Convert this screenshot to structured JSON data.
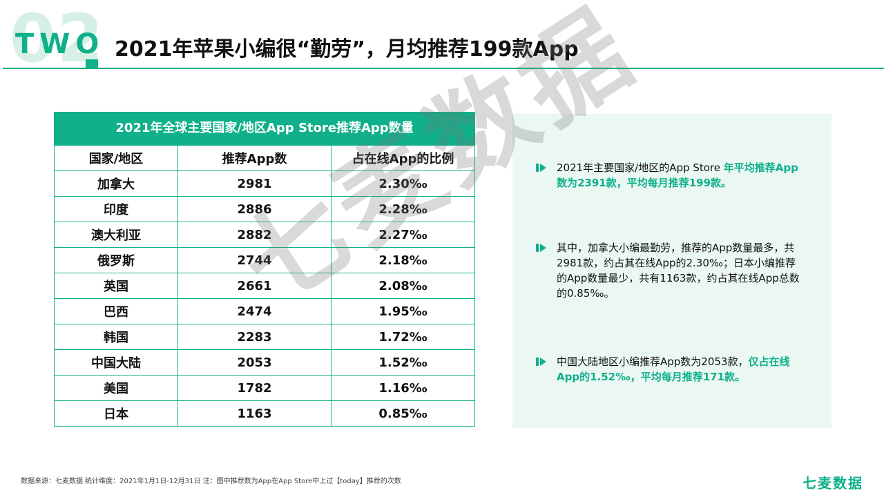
{
  "header": {
    "section_number": "02",
    "section_word": "TWO",
    "title": "2021年苹果小编很“勤劳”，月均推荐199款App"
  },
  "table": {
    "caption": "2021年全球主要国家/地区App Store推荐App数量",
    "columns": [
      "国家/地区",
      "推荐App数",
      "占在线App的比例"
    ],
    "rows": [
      [
        "加拿大",
        "2981",
        "2.30‰"
      ],
      [
        "印度",
        "2886",
        "2.28‰"
      ],
      [
        "澳大利亚",
        "2882",
        "2.27‰"
      ],
      [
        "俄罗斯",
        "2744",
        "2.18‰"
      ],
      [
        "英国",
        "2661",
        "2.08‰"
      ],
      [
        "巴西",
        "2474",
        "1.95‰"
      ],
      [
        "韩国",
        "2283",
        "1.72‰"
      ],
      [
        "中国大陆",
        "2053",
        "1.52‰"
      ],
      [
        "美国",
        "1782",
        "1.16‰"
      ],
      [
        "日本",
        "1163",
        "0.85‰"
      ]
    ]
  },
  "bullets": [
    {
      "text": "2021年主要国家/地区的App Store ",
      "highlight": "年平均推荐App数为2391款，平均每月推荐199款。"
    },
    {
      "text": "其中，加拿大小编最勤劳，推荐的App数量最多，共2981款，约占其在线App的2.30‰；日本小编推荐的App数量最少，共有1163款，约占其在线App总数的0.85‰。",
      "highlight": ""
    },
    {
      "text": "中国大陆地区小编推荐App数为2053款，",
      "highlight": "仅占在线App的1.52‰，平均每月推荐171款。"
    }
  ],
  "watermark": "七麦数据",
  "footer": {
    "note": "数据来源：七麦数据  统计维度：2021年1月1日-12月31日  注：图中推荐数为App在App Store中上过【today】推荐的次数",
    "logo": "七麦数据"
  },
  "colors": {
    "accent": "#0fb08a",
    "panel_bg": "#ebf7f2"
  },
  "icons": {
    "bullet": "bar-triangle-bullet-icon"
  }
}
